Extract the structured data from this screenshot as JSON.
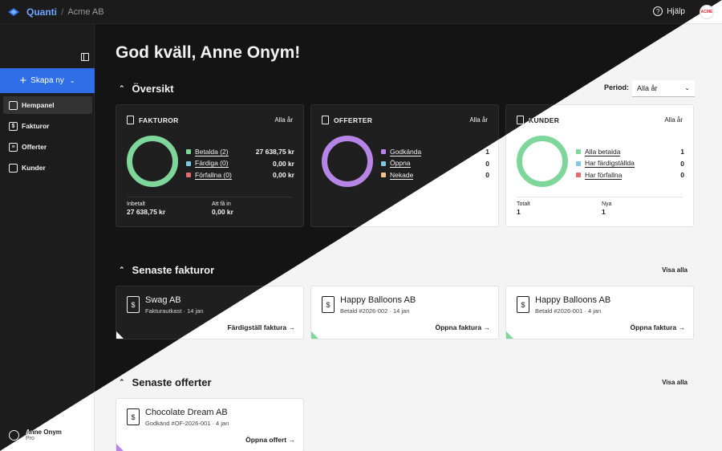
{
  "topbar": {
    "brand": "Quanti",
    "separator": "/",
    "company": "Acme AB",
    "help": "Hjälp",
    "help_icon": "?",
    "avatar": "ACME"
  },
  "sidebar": {
    "create_label": "Skapa ny",
    "items": [
      {
        "label": "Hempanel",
        "icon": "grid-icon"
      },
      {
        "label": "Fakturor",
        "icon": "$"
      },
      {
        "label": "Offerter",
        "icon": "≡"
      },
      {
        "label": "Kunder",
        "icon": "people-icon"
      }
    ],
    "user": {
      "name": "Anne Onym",
      "plan": "Pro"
    }
  },
  "greeting": "God kväll, Anne Onym!",
  "overview": {
    "title": "Översikt",
    "period_label": "Period:",
    "period_value": "Alla år",
    "cards": [
      {
        "title": "FAKTUROR",
        "range": "Alla år",
        "ring_color": "#7fd69a",
        "legend": [
          {
            "label": "Betalda (2)",
            "value": "27 638,75 kr",
            "color": "#7fd69a"
          },
          {
            "label": "Färdiga (0)",
            "value": "0,00 kr",
            "color": "#7ec8e3"
          },
          {
            "label": "Förfallna (0)",
            "value": "0,00 kr",
            "color": "#e36b6b"
          }
        ],
        "stats": [
          {
            "label": "Inbetalt",
            "value": "27 638,75 kr"
          },
          {
            "label": "Att få in",
            "value": "0,00 kr"
          }
        ]
      },
      {
        "title": "OFFERTER",
        "range": "Alla år",
        "ring_color": "#b685e6",
        "legend": [
          {
            "label": "Godkända",
            "value": "1",
            "color": "#b685e6"
          },
          {
            "label": "Öppna",
            "value": "0",
            "color": "#7ec8e3"
          },
          {
            "label": "Nekade",
            "value": "0",
            "color": "#f2c38a"
          }
        ],
        "stats": []
      },
      {
        "title": "KUNDER",
        "range": "Alla år",
        "ring_color": "#7fd69a",
        "legend": [
          {
            "label": "Alla betalda",
            "value": "1",
            "color": "#7fd69a"
          },
          {
            "label": "Har färdigställda",
            "value": "0",
            "color": "#7ec8e3"
          },
          {
            "label": "Har förfallna",
            "value": "0",
            "color": "#e36b6b"
          }
        ],
        "stats": [
          {
            "label": "Totalt",
            "value": "1"
          },
          {
            "label": "Nya",
            "value": "1"
          }
        ]
      }
    ]
  },
  "invoices": {
    "title": "Senaste fakturor",
    "view_all": "Visa alla",
    "items": [
      {
        "name": "Swag AB",
        "status": "Fakturautkast",
        "number": "",
        "date": "14 jan",
        "action": "Färdigställ faktura",
        "corner": "#ffffff"
      },
      {
        "name": "Happy Balloons AB",
        "status": "Betald",
        "number": "#2026-002",
        "date": "14 jan",
        "action": "Öppna faktura",
        "corner": "#7fd69a"
      },
      {
        "name": "Happy Balloons AB",
        "status": "Betald",
        "number": "#2026-001",
        "date": "4 jan",
        "action": "Öppna faktura",
        "corner": "#7fd69a"
      }
    ]
  },
  "quotes": {
    "title": "Senaste offerter",
    "view_all": "Visa alla",
    "items": [
      {
        "name": "Chocolate Dream AB",
        "status": "Godkänd",
        "number": "#OF-2026-001",
        "date": "4 jan",
        "action": "Öppna offert",
        "corner": "#b685e6"
      }
    ]
  },
  "glyphs": {
    "collapse_caret": "⌃",
    "chevron_down": "⌄",
    "arrow": "→",
    "meta_dot": "·",
    "plus": "+",
    "dollar": "$"
  }
}
